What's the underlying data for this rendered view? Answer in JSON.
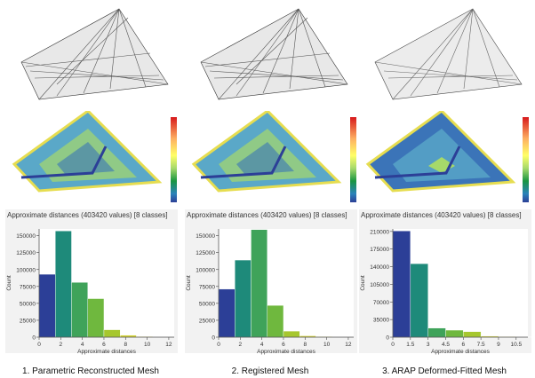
{
  "panels": [
    {
      "caption": "1. Parametric Reconstructed Mesh",
      "hist_title": "Approximate distances (403420 values) [8 classes]"
    },
    {
      "caption": "2. Registered Mesh",
      "hist_title": "Approximate distances (403420 values) [8 classes]"
    },
    {
      "caption": "3. ARAP Deformed-Fitted Mesh",
      "hist_title": "Approximate distances (403420 values) [8 classes]"
    }
  ],
  "colors": {
    "bars": [
      "#2c3f97",
      "#1e8a7a",
      "#3fa35a",
      "#6fb83e",
      "#a6c72e",
      "#d3d233",
      "#e6dd50",
      "#f2e675"
    ],
    "scale": [
      "#d7191c",
      "#fdae61",
      "#ffff66",
      "#a6d96a",
      "#1a9641",
      "#2b83ba",
      "#2c3f97"
    ]
  },
  "chart_data": [
    {
      "type": "bar",
      "title": "Approximate distances (403420 values) [8 classes]",
      "xlabel": "Approximate distances",
      "ylabel": "Count",
      "bin_edges": [
        0,
        1.5,
        3,
        4.5,
        6,
        7.5,
        9,
        10.5,
        12
      ],
      "values": [
        93000,
        157000,
        81000,
        57000,
        11000,
        3000,
        1000,
        500
      ],
      "xlim": [
        0,
        12.5
      ],
      "ylim": [
        0,
        160000
      ],
      "xticks": [
        "0",
        "2",
        "4",
        "6",
        "8",
        "10",
        "12"
      ],
      "yticks": [
        "0",
        "25000",
        "50000",
        "75000",
        "100000",
        "125000",
        "150000"
      ]
    },
    {
      "type": "bar",
      "title": "Approximate distances (403420 values) [8 classes]",
      "xlabel": "Approximate distances",
      "ylabel": "Count",
      "bin_edges": [
        0,
        1.5,
        3,
        4.5,
        6,
        7.5,
        9,
        10.5,
        12
      ],
      "values": [
        71000,
        114000,
        159000,
        47000,
        9000,
        2000,
        800,
        300
      ],
      "xlim": [
        0,
        12.5
      ],
      "ylim": [
        0,
        160000
      ],
      "xticks": [
        "0",
        "2",
        "4",
        "6",
        "8",
        "10",
        "12"
      ],
      "yticks": [
        "0",
        "25000",
        "50000",
        "75000",
        "100000",
        "125000",
        "150000"
      ]
    },
    {
      "type": "bar",
      "title": "Approximate distances (403420 values) [8 classes]",
      "xlabel": "Approximate distances",
      "ylabel": "Count",
      "bin_edges": [
        0,
        1.5,
        3,
        4.5,
        6,
        7.5,
        9,
        10.5,
        12
      ],
      "values": [
        211000,
        146000,
        18000,
        14000,
        11000,
        2000,
        1000,
        400
      ],
      "xlim": [
        0,
        11.5
      ],
      "ylim": [
        0,
        215000
      ],
      "xticks": [
        "0",
        "1.5",
        "3",
        "4.5",
        "6",
        "7.5",
        "9",
        "10.5"
      ],
      "yticks": [
        "0",
        "35000",
        "70000",
        "105000",
        "140000",
        "175000",
        "210000"
      ]
    }
  ]
}
